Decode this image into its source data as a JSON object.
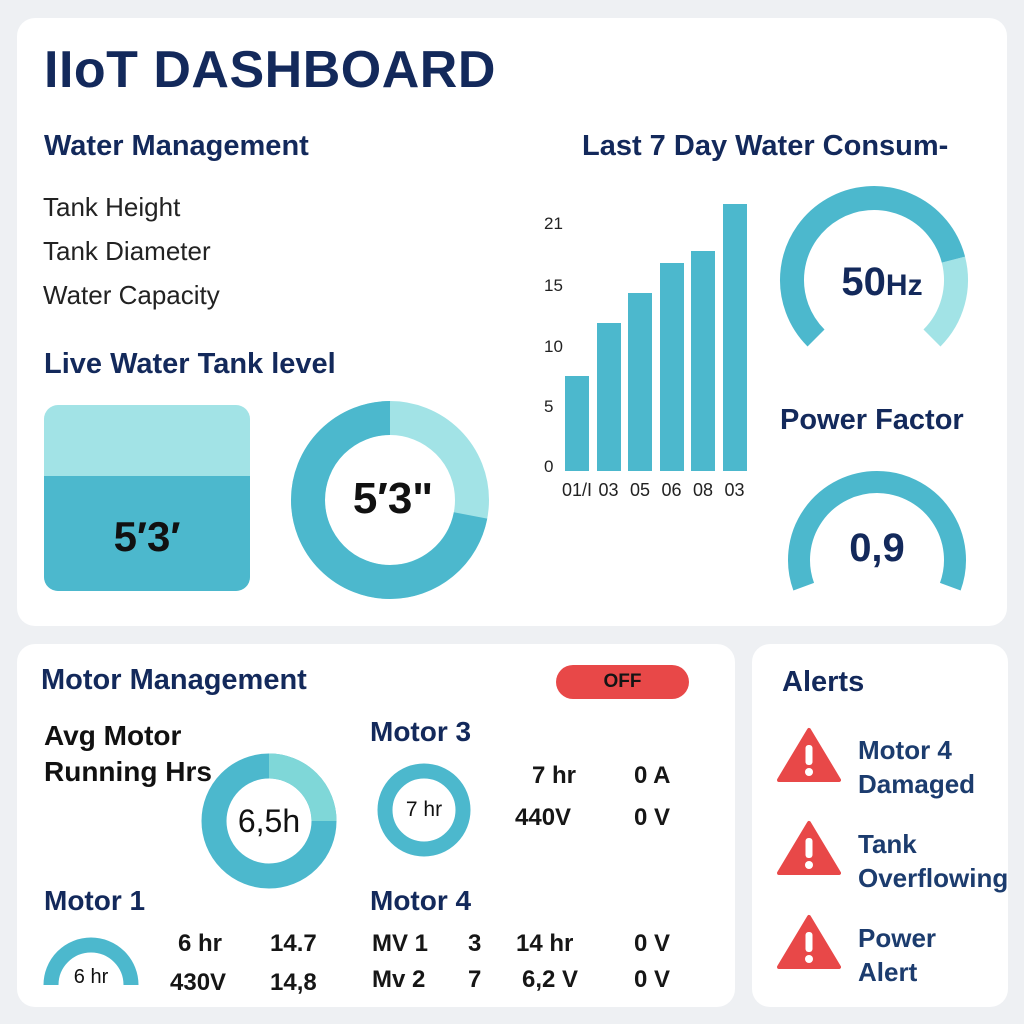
{
  "header": {
    "title": "IIoT DASHBOARD"
  },
  "water": {
    "title": "Water Management",
    "specs": [
      "Tank Height",
      "Tank Diameter",
      "Water Capacity"
    ],
    "live_title": "Live Water Tank level",
    "tank_value": "5′3′",
    "tank_level_fraction": 0.62,
    "ring_value": "5′3\"",
    "ring_fraction": 0.72
  },
  "consumption": {
    "title": "Last 7 Day Water Consum-"
  },
  "chart_data": {
    "type": "bar",
    "title": "Last 7 Day Water Consum-",
    "categories": [
      "01/I",
      "03",
      "05",
      "06",
      "08",
      "03"
    ],
    "values": [
      8,
      12.5,
      15,
      17.5,
      18.5,
      22.5
    ],
    "yticks": [
      "21",
      "15",
      "10",
      "5",
      "0"
    ],
    "ylim": [
      0,
      23
    ],
    "color": "#4cb8cd"
  },
  "frequency": {
    "value": "50",
    "unit": "Hz",
    "fraction": 0.78
  },
  "power_factor": {
    "title": "Power Factor",
    "value": "0,9",
    "fraction": 0.9
  },
  "motor": {
    "title": "Motor Management",
    "status": "OFF",
    "avg_label_1": "Avg Motor",
    "avg_label_2": "Running Hrs",
    "avg_value": "6,5h",
    "motor1": {
      "title": "Motor 1",
      "gauge": "6 hr",
      "hours": "6 hr",
      "voltage": "430V",
      "val_a": "14.7",
      "val_b": "14,8"
    },
    "motor3": {
      "title": "Motor 3",
      "gauge": "7 hr",
      "hours": "7 hr",
      "voltage": "440V",
      "current": "0 A",
      "volt2": "0 V"
    },
    "motor4": {
      "title": "Motor 4",
      "rows": [
        {
          "name": "MV 1",
          "num": "3",
          "val": "14 hr",
          "out": "0 V"
        },
        {
          "name": "Mv 2",
          "num": "7",
          "val": "6,2 V",
          "out": "0 V"
        }
      ]
    }
  },
  "alerts": {
    "title": "Alerts",
    "items": [
      {
        "line1": "Motor 4",
        "line2": "Damaged"
      },
      {
        "line1": "Tank",
        "line2": "Overflowing"
      },
      {
        "line1": "Power",
        "line2": "Alert"
      }
    ],
    "color": "#e84848"
  },
  "colors": {
    "navy": "#13295b",
    "teal": "#4cb8cd",
    "light_teal": "#a2e3e6",
    "red": "#e84848"
  }
}
